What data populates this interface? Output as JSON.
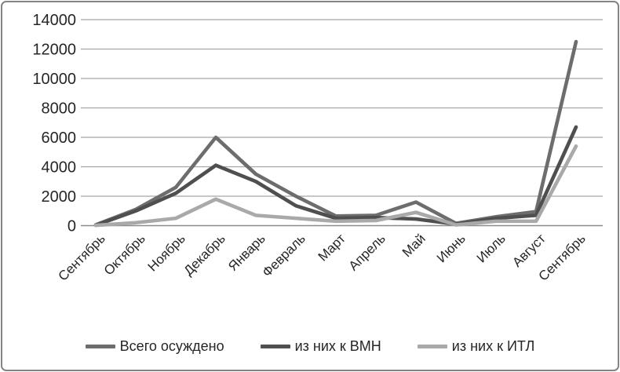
{
  "chart_data": {
    "type": "line",
    "title": "",
    "xlabel": "",
    "ylabel": "",
    "categories": [
      "Сентябрь",
      "Октябрь",
      "Ноябрь",
      "Декабрь",
      "Январь",
      "Февраль",
      "Март",
      "Апрель",
      "Май",
      "Июнь",
      "Июль",
      "Август",
      "Сентябрь"
    ],
    "series": [
      {
        "name": "Всего осуждено",
        "color": "#6d6d6d",
        "values": [
          50,
          1100,
          2600,
          6000,
          3500,
          2000,
          650,
          700,
          1600,
          150,
          600,
          950,
          12500
        ]
      },
      {
        "name": "из них к ВМН",
        "color": "#4f4f4f",
        "values": [
          30,
          1000,
          2200,
          4100,
          3000,
          1350,
          500,
          550,
          450,
          100,
          500,
          700,
          6700
        ]
      },
      {
        "name": "из них к ИТЛ",
        "color": "#a9a9a9",
        "values": [
          20,
          200,
          500,
          1800,
          700,
          500,
          300,
          350,
          900,
          50,
          300,
          300,
          5400
        ]
      }
    ],
    "ylim": [
      0,
      14000
    ],
    "ytick_step": 2000,
    "yticks": [
      "0",
      "2000",
      "4000",
      "6000",
      "8000",
      "10000",
      "12000",
      "14000"
    ],
    "grid": true,
    "legend_position": "bottom",
    "gridline_color": "#a6a6a6",
    "axis_color": "#8c8c8c",
    "text_color": "#262626"
  }
}
